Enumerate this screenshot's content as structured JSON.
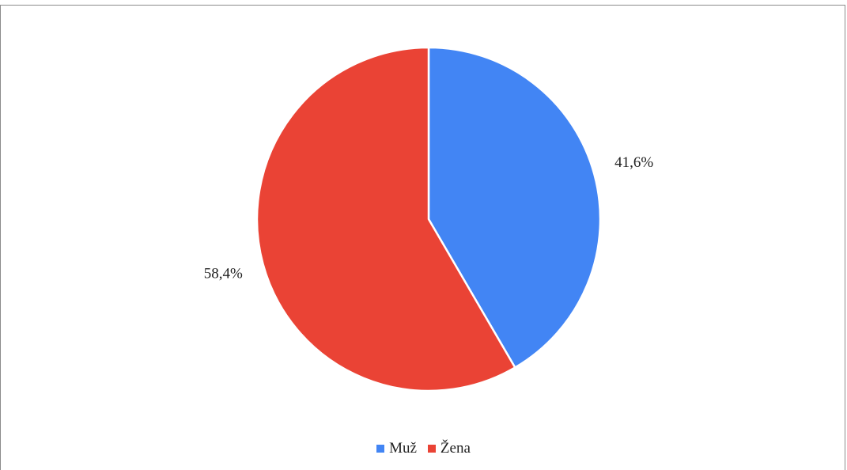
{
  "chart_data": {
    "type": "pie",
    "categories": [
      "Muž",
      "Žena"
    ],
    "values": [
      41.6,
      58.4
    ],
    "labels": [
      "41,6%",
      "58,4%"
    ],
    "colors": [
      "#4285f4",
      "#ea4335"
    ],
    "start_angle_deg": 0,
    "direction": "clockwise",
    "legend": {
      "position": "bottom",
      "items": [
        {
          "label": "Muž",
          "color": "#4285f4"
        },
        {
          "label": "Žena",
          "color": "#ea4335"
        }
      ]
    }
  }
}
